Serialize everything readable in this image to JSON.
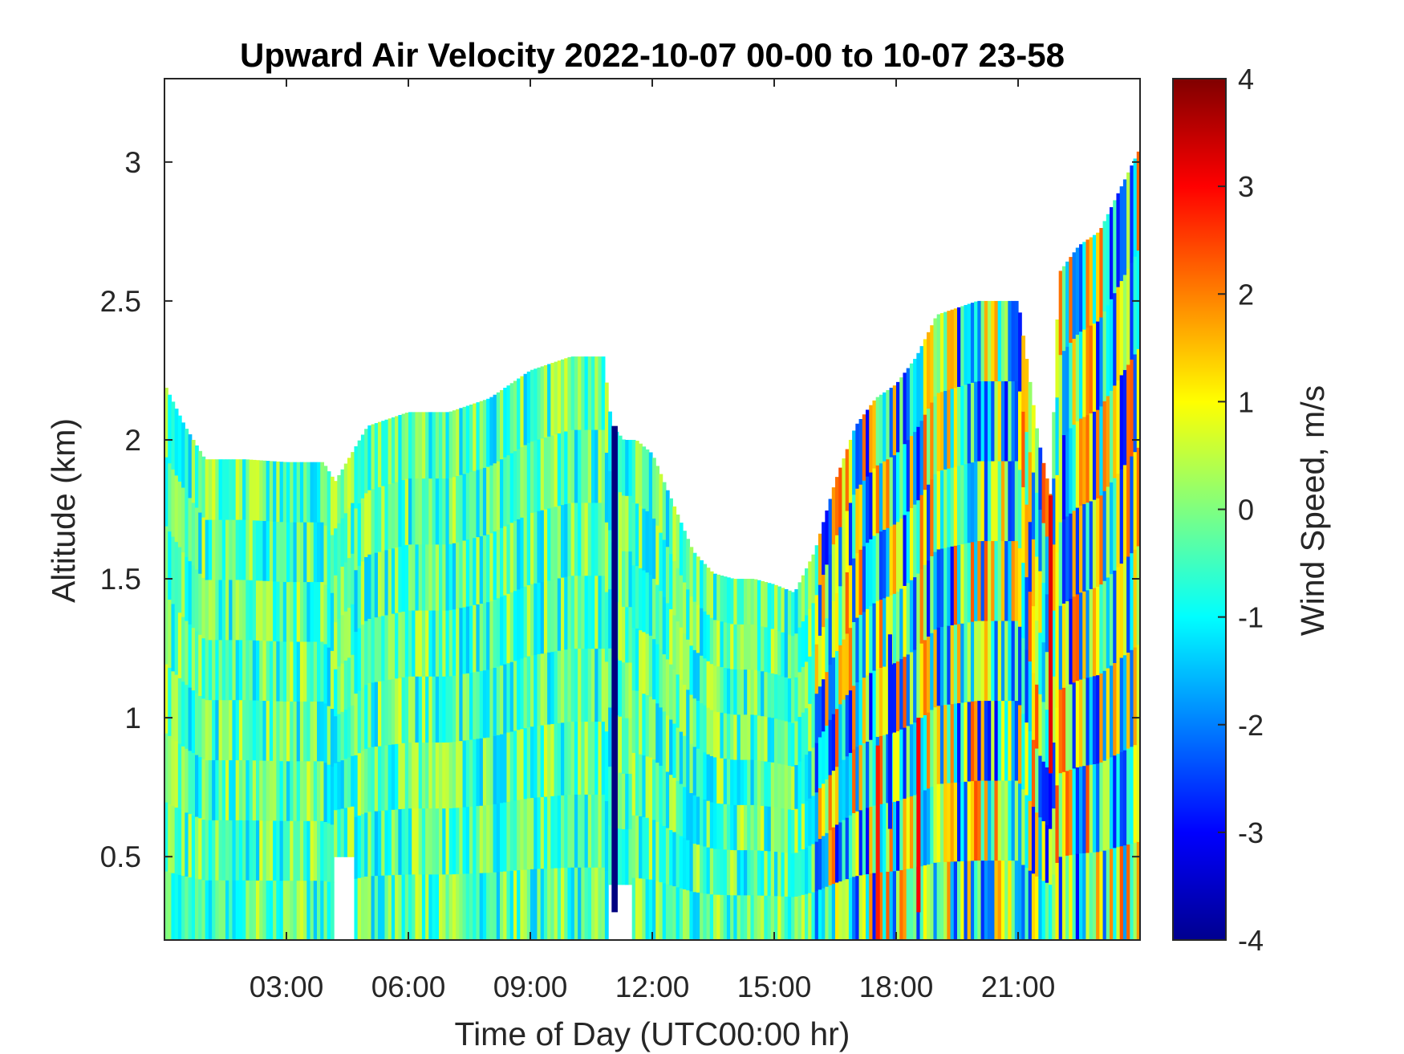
{
  "chart_data": {
    "type": "heatmap",
    "title": "Upward Air Velocity 2022-10-07 00-00 to 10-07 23-58",
    "xlabel": "Time of Day (UTC00:00 hr)",
    "ylabel": "Altitude (km)",
    "colorbar_label": "Wind Speed, m/s",
    "colormap": "jet",
    "xlim_hours": [
      0,
      24
    ],
    "ylim_km": [
      0.2,
      3.3
    ],
    "clim": [
      -4,
      4
    ],
    "x_ticks": [
      {
        "value": 3,
        "label": "03:00"
      },
      {
        "value": 6,
        "label": "06:00"
      },
      {
        "value": 9,
        "label": "09:00"
      },
      {
        "value": 12,
        "label": "12:00"
      },
      {
        "value": 15,
        "label": "15:00"
      },
      {
        "value": 18,
        "label": "18:00"
      },
      {
        "value": 21,
        "label": "21:00"
      }
    ],
    "y_ticks": [
      {
        "value": 0.5,
        "label": "0.5"
      },
      {
        "value": 1,
        "label": "1"
      },
      {
        "value": 1.5,
        "label": "1.5"
      },
      {
        "value": 2,
        "label": "2"
      },
      {
        "value": 2.5,
        "label": "2.5"
      },
      {
        "value": 3,
        "label": "3"
      }
    ],
    "colorbar_ticks": [
      {
        "value": 4,
        "label": "4"
      },
      {
        "value": 3,
        "label": "3"
      },
      {
        "value": 2,
        "label": "2"
      },
      {
        "value": 1,
        "label": "1"
      },
      {
        "value": 0,
        "label": "0"
      },
      {
        "value": -1,
        "label": "-1"
      },
      {
        "value": -2,
        "label": "-2"
      },
      {
        "value": -3,
        "label": "-3"
      },
      {
        "value": -4,
        "label": "-4"
      }
    ],
    "data_top_altitude_km": {
      "x": [
        0.0,
        0.5,
        1.0,
        2.0,
        3.0,
        3.9,
        4.2,
        4.6,
        5.0,
        6.0,
        7.0,
        8.0,
        9.0,
        10.0,
        10.8,
        11.0,
        11.3,
        11.6,
        12.0,
        13.0,
        13.5,
        14.0,
        14.5,
        15.0,
        15.5,
        16.0,
        16.5,
        17.0,
        17.5,
        18.0,
        18.5,
        19.0,
        20.0,
        21.0,
        21.5,
        21.8,
        22.0,
        22.5,
        23.0,
        23.5,
        24.0
      ],
      "y": [
        2.2,
        2.05,
        1.93,
        1.93,
        1.92,
        1.92,
        1.85,
        1.95,
        2.05,
        2.1,
        2.1,
        2.15,
        2.25,
        2.3,
        2.3,
        2.05,
        2.0,
        2.0,
        1.95,
        1.6,
        1.52,
        1.5,
        1.5,
        1.48,
        1.45,
        1.6,
        1.85,
        2.05,
        2.15,
        2.2,
        2.3,
        2.45,
        2.5,
        2.5,
        2.0,
        1.8,
        2.6,
        2.7,
        2.75,
        2.9,
        3.05
      ]
    },
    "gaps": [
      {
        "x_start": 4.2,
        "x_end": 4.7,
        "alt_max_km": 0.5
      },
      {
        "x_start": 10.9,
        "x_end": 11.5,
        "alt_max_km": 0.4
      }
    ],
    "features": [
      {
        "x_start": 11.0,
        "x_end": 11.15,
        "alt_min_km": 0.3,
        "alt_max_km": 2.05,
        "value": -4
      },
      {
        "x_start": 17.5,
        "x_end": 17.6,
        "alt_min_km": 0.2,
        "alt_max_km": 0.9,
        "value": 2.8
      },
      {
        "x_start": 18.5,
        "x_end": 18.6,
        "alt_min_km": 0.3,
        "alt_max_km": 1.0,
        "value": 3.0
      },
      {
        "x_start": 17.8,
        "x_end": 17.9,
        "alt_min_km": 0.6,
        "alt_max_km": 1.3,
        "value": -2.8
      },
      {
        "x_start": 21.75,
        "x_end": 21.85,
        "alt_min_km": 0.8,
        "alt_max_km": 1.8,
        "value": 3.2
      }
    ],
    "typical_value_range": [
      -1.5,
      1.0
    ],
    "typical_value_range_after_16h": [
      -3.0,
      3.0
    ],
    "grid": false
  }
}
